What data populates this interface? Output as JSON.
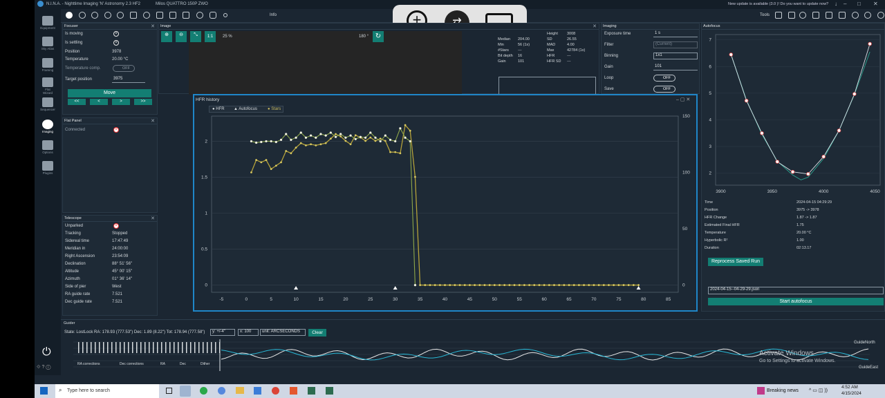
{
  "titlebar": {
    "app": "N.I.N.A. - Nighttime Imaging 'N' Astronomy 2.3 HF2",
    "profile": "Milos QUATTRO 150P ZWO",
    "update": "New update is available (3.0 )! Do you want to update now?"
  },
  "toolbar": {
    "info": "Info",
    "tools": "Tools"
  },
  "sidebar": {
    "items": [
      "Equipment",
      "Sky Atlas",
      "Framing",
      "Flat Wizard",
      "Sequencer",
      "Imaging",
      "Options",
      "Plugins"
    ]
  },
  "focuser": {
    "title": "Focuser",
    "rows": [
      {
        "label": "Is moving",
        "value": ""
      },
      {
        "label": "Is settling",
        "value": ""
      },
      {
        "label": "Position",
        "value": "3978"
      },
      {
        "label": "Temperature",
        "value": "20.00 °C"
      },
      {
        "label": "Temperature comp.",
        "value": "OFF"
      },
      {
        "label": "Target position",
        "value": "3975"
      }
    ],
    "move": "Move",
    "steps": [
      "<<",
      "<",
      ">",
      ">>"
    ]
  },
  "flatpanel": {
    "title": "Flat Panel",
    "connected": "Connected"
  },
  "telescope": {
    "title": "Telescope",
    "rows": [
      {
        "label": "Unparked",
        "value": ""
      },
      {
        "label": "Tracking",
        "value": "Stopped"
      },
      {
        "label": "Sidereal time",
        "value": "17:47:49"
      },
      {
        "label": "Meridian in",
        "value": "24:00:00"
      },
      {
        "label": "Right Ascension",
        "value": "23:54:09"
      },
      {
        "label": "Declination",
        "value": "88° 51' 56\""
      },
      {
        "label": "Altitude",
        "value": "45° 00' 15\""
      },
      {
        "label": "Azimuth",
        "value": "01° 36' 14\""
      },
      {
        "label": "Side of pier",
        "value": "West"
      },
      {
        "label": "RA guide rate",
        "value": "7.521"
      },
      {
        "label": "Dec guide rate",
        "value": "7.521"
      }
    ]
  },
  "image": {
    "title": "Image",
    "zoom": "25 %",
    "ratio": "1:1",
    "rotation": "180 °"
  },
  "stats": {
    "left": [
      {
        "l": "Median",
        "v": "204.00"
      },
      {
        "l": "Min",
        "v": "56 (1x)"
      },
      {
        "l": "#Stars",
        "v": "---"
      },
      {
        "l": "Bit depth",
        "v": "16"
      },
      {
        "l": "Gain",
        "v": "101"
      }
    ],
    "right": [
      {
        "l": "Height",
        "v": "3008"
      },
      {
        "l": "SD",
        "v": "26.55"
      },
      {
        "l": "MAD",
        "v": "4.00"
      },
      {
        "l": "Max",
        "v": "42784 (1x)"
      },
      {
        "l": "HFR",
        "v": "---"
      },
      {
        "l": "HFR SD",
        "v": "---"
      }
    ]
  },
  "imaging": {
    "title": "Imaging",
    "exposure_label": "Exposure time",
    "exposure": "1 s",
    "filter_label": "Filter",
    "filter": "(Current)",
    "binning_label": "Binning",
    "binning": "1x1",
    "gain_label": "Gain",
    "gain": "101",
    "loop_label": "Loop",
    "loop": "OFF",
    "save_label": "Save",
    "save": "OFF"
  },
  "hfr": {
    "title": "HFR history",
    "legend": [
      "HFR",
      "Autofocus",
      "Stars"
    ]
  },
  "autofocus": {
    "title": "Autofocus",
    "info": [
      {
        "l": "Time",
        "v": "2024-04-15 04:29:29"
      },
      {
        "l": "Position",
        "v": "3975 -> 3978"
      },
      {
        "l": "HFR Change",
        "v": "1.87 -> 1.87"
      },
      {
        "l": "Estimated Final HFR",
        "v": "1.75"
      },
      {
        "l": "Temperature",
        "v": "20.00 °C"
      },
      {
        "l": "Hyperbolic R²",
        "v": "1.00"
      },
      {
        "l": "Duration",
        "v": "02:13.17"
      }
    ],
    "reprocess": "Reprocess Saved Run",
    "file": "2024-04-15--04-29-29.json",
    "start": "Start autofocus"
  },
  "guider": {
    "title": "Guider",
    "state": "State: LostLock  RA: 178.93 (777.53\")  Dec: 1.89 (8.22\")  Tot: 178.94 (777.58\")",
    "y": "y: +/-4\"",
    "x": "x: 100",
    "unit": "unit: ARCSECONDS",
    "clear": "Clear",
    "legend": [
      "RA corrections",
      "Dec corrections",
      "RA",
      "Dec",
      "Dither"
    ],
    "north": "GuideNorth",
    "east": "GuideEast"
  },
  "windows": {
    "activate": "Activate Windows",
    "activate_sub": "Go to Settings to activate Windows."
  },
  "taskbar": {
    "search": "Type here to search",
    "news": "Breaking news",
    "time": "4:52 AM",
    "date": "4/15/2024"
  },
  "colors": {
    "accent": "#137e73",
    "hfr": "#d9d9b0",
    "stars": "#b5a23a",
    "af_line": "#d8e0e6",
    "af_fit": "#2c9a8a",
    "guide_ra": "#e8e8e8",
    "guide_dec": "#29b8d6"
  },
  "chart_data": [
    {
      "type": "line",
      "title": "HFR history",
      "x_ticks": [
        -5,
        0,
        5,
        10,
        15,
        20,
        25,
        30,
        35,
        40,
        45,
        50,
        55,
        60,
        65,
        70,
        75,
        80,
        85
      ],
      "y_ticks": [
        0,
        0.5,
        1,
        1.5,
        2
      ],
      "y2_ticks": [
        0,
        50,
        100,
        150
      ],
      "xlim": [
        -7,
        87
      ],
      "ylim": [
        -0.1,
        2.35
      ],
      "y2lim": [
        -6.4,
        150
      ],
      "series": [
        {
          "name": "HFR",
          "x": [
            1,
            2,
            3,
            4,
            5,
            6,
            7,
            8,
            9,
            10,
            11,
            12,
            13,
            14,
            15,
            16,
            17,
            18,
            19,
            20,
            21,
            22,
            23,
            24,
            25,
            26,
            27,
            28,
            29,
            30,
            31,
            32,
            33,
            34
          ],
          "values": [
            2.0,
            1.98,
            1.99,
            2.0,
            2.0,
            1.99,
            2.02,
            2.1,
            2.02,
            2.05,
            2.12,
            2.05,
            2.08,
            2.05,
            2.1,
            2.08,
            2.12,
            2.06,
            2.1,
            2.05,
            2.08,
            2.03,
            2.06,
            2.05,
            2.12,
            2.05,
            2.0,
            2.08,
            2.02,
            2.0,
            2.18,
            2.05,
            2.0,
            0.0
          ]
        },
        {
          "name": "Stars",
          "x": [
            1,
            2,
            3,
            4,
            5,
            6,
            7,
            8,
            9,
            10,
            11,
            12,
            13,
            14,
            15,
            16,
            17,
            18,
            19,
            20,
            21,
            22,
            23,
            24,
            25,
            26,
            27,
            28,
            29,
            30,
            31,
            32,
            33,
            34,
            35,
            36,
            37,
            38,
            39,
            40,
            41,
            42,
            43,
            44,
            45,
            46,
            47,
            48,
            49,
            50,
            51,
            52,
            53,
            54,
            55,
            56,
            57,
            58,
            59,
            60,
            61,
            62,
            63,
            64,
            65,
            66,
            67,
            68,
            69,
            70,
            71,
            72,
            73,
            74,
            75,
            76,
            77,
            78,
            79
          ],
          "values": [
            100,
            111,
            109,
            111,
            103,
            106,
            109,
            119,
            117,
            122,
            126,
            124,
            125,
            124,
            125,
            126,
            130,
            134,
            132,
            128,
            125,
            133,
            131,
            128,
            131,
            128,
            130,
            128,
            118,
            118,
            117,
            142,
            137,
            96,
            0,
            0,
            0,
            0,
            0,
            0,
            0,
            0,
            0,
            0,
            0,
            0,
            0,
            0,
            0,
            0,
            0,
            0,
            0,
            0,
            0,
            0,
            0,
            0,
            0,
            0,
            0,
            0,
            0,
            0,
            0,
            0,
            0,
            0,
            0,
            0,
            0,
            0,
            0,
            0,
            0,
            0,
            0,
            0,
            0
          ]
        }
      ],
      "autofocus_x": [
        10,
        30,
        79
      ]
    },
    {
      "type": "scatter",
      "title": "Autofocus",
      "xlim": [
        3895,
        4055
      ],
      "ylim": [
        1.55,
        7.2
      ],
      "x_ticks": [
        3900,
        3950,
        4000,
        4050
      ],
      "y_ticks": [
        2,
        3,
        4,
        5,
        6,
        7
      ],
      "points": {
        "x": [
          3910,
          3925,
          3940,
          3955,
          3970,
          3985,
          4000,
          4015,
          4030,
          4045
        ],
        "y": [
          6.45,
          4.72,
          3.5,
          2.43,
          2.05,
          1.97,
          2.62,
          3.6,
          4.97,
          6.85
        ]
      },
      "fit": {
        "x": [
          3910,
          3925,
          3940,
          3955,
          3970,
          3978,
          3985,
          4000,
          4015,
          4030,
          4045
        ],
        "y": [
          6.45,
          4.75,
          3.45,
          2.45,
          1.93,
          1.75,
          1.85,
          2.55,
          3.6,
          4.95,
          6.55
        ]
      }
    }
  ]
}
